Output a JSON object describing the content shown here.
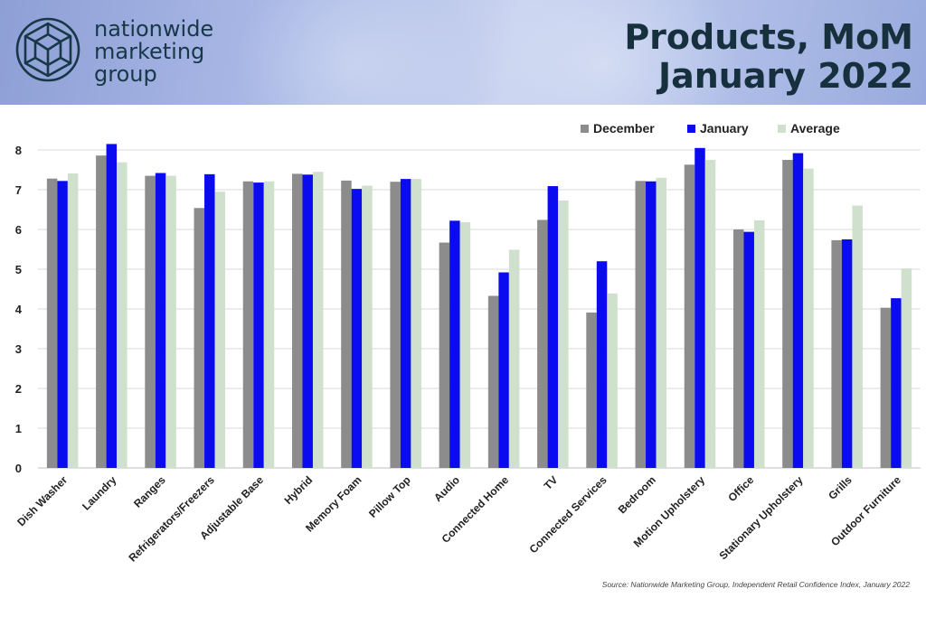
{
  "brand": {
    "line1": "nationwide",
    "line2": "marketing",
    "line3": "group",
    "logo_icon": "geodesic-hexagon-icon"
  },
  "title": {
    "line1": "Products, MoM",
    "line2": "January 2022"
  },
  "source": "Source: Nationwide Marketing Group, Independent Retail Confidence Index, January 2022",
  "colors": {
    "december": "#8c8c8c",
    "january": "#0b0bf0",
    "average": "#cfe0cc",
    "title": "#16303e",
    "brand": "#173847"
  },
  "chart_data": {
    "type": "bar",
    "categories": [
      "Dish Washer",
      "Laundry",
      "Ranges",
      "Refrigerators/Freezers",
      "Adjustable Base",
      "Hybrid",
      "Memory Foam",
      "Pillow Top",
      "Audio",
      "Connected Home",
      "TV",
      "Connected Services",
      "Bedroom",
      "Motion Upholstery",
      "Office",
      "Stationary Upholstery",
      "Grills",
      "Outdoor Furniture"
    ],
    "series": [
      {
        "name": "December",
        "values": [
          7.28,
          7.86,
          7.35,
          6.54,
          7.21,
          7.4,
          7.23,
          7.2,
          5.67,
          4.33,
          6.24,
          3.91,
          7.22,
          7.63,
          6.0,
          7.75,
          5.73,
          4.03
        ]
      },
      {
        "name": "January",
        "values": [
          7.22,
          8.15,
          7.42,
          7.39,
          7.18,
          7.38,
          7.02,
          7.27,
          6.22,
          4.92,
          7.09,
          5.2,
          7.21,
          8.05,
          5.94,
          7.92,
          5.75,
          4.27
        ]
      },
      {
        "name": "Average",
        "values": [
          7.41,
          7.69,
          7.35,
          6.95,
          7.21,
          7.45,
          7.1,
          7.27,
          6.18,
          5.49,
          6.73,
          4.39,
          7.3,
          7.75,
          6.23,
          7.53,
          6.6,
          5.02
        ]
      }
    ],
    "y_ticks": [
      "0",
      "1",
      "2",
      "3",
      "4",
      "5",
      "6",
      "7",
      "8"
    ],
    "ylim": [
      0,
      8.5
    ],
    "grid": "horizontal",
    "legend_position": "top-right"
  }
}
